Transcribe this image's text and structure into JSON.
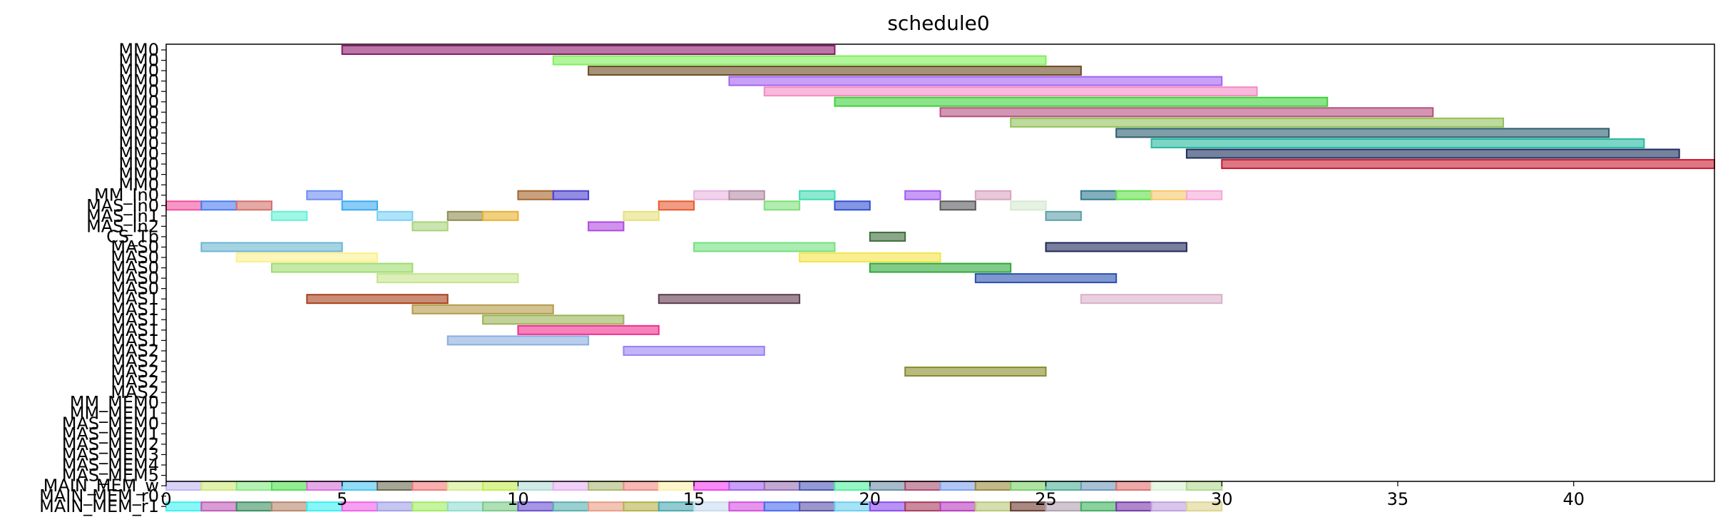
{
  "chart_data": {
    "type": "gantt",
    "title": "schedule0",
    "xlabel": "",
    "ylabel": "",
    "xlim": [
      0,
      44
    ],
    "xticks": [
      0,
      5,
      10,
      15,
      20,
      25,
      30,
      35,
      40
    ],
    "grid": false,
    "rows": [
      "MM0",
      "MM0",
      "MM0",
      "MM0",
      "MM0",
      "MM0",
      "MM0",
      "MM0",
      "MM0",
      "MM0",
      "MM0",
      "MM0",
      "MM0",
      "MM0",
      "MM_In0",
      "MAS_In0",
      "MAS_In1",
      "MAS_In2",
      "CS_Tb",
      "MAS0",
      "MAS0",
      "MAS0",
      "MAS0",
      "MAS0",
      "MAS1",
      "MAS1",
      "MAS1",
      "MAS1",
      "MAS1",
      "MAS2",
      "MAS2",
      "MAS2",
      "MAS2",
      "MAS2",
      "MM_MEM0",
      "MM_MEM1",
      "MAS_MEM0",
      "MAS_MEM1",
      "MAS_MEM2",
      "MAS_MEM3",
      "MAS_MEM4",
      "MAS_MEM5",
      "MAIN_MEM_w",
      "MAIN_MEM_r0",
      "MAIN_MEM_r1"
    ],
    "tasks": [
      {
        "row": 0,
        "start": 5,
        "end": 19,
        "color": "#8b1a6b"
      },
      {
        "row": 1,
        "start": 11,
        "end": 25,
        "color": "#7ff05a"
      },
      {
        "row": 2,
        "start": 12,
        "end": 26,
        "color": "#6b4a22"
      },
      {
        "row": 3,
        "start": 16,
        "end": 30,
        "color": "#a463f2"
      },
      {
        "row": 4,
        "start": 17,
        "end": 31,
        "color": "#f58ac4"
      },
      {
        "row": 5,
        "start": 19,
        "end": 33,
        "color": "#3ed23a"
      },
      {
        "row": 6,
        "start": 22,
        "end": 36,
        "color": "#b5507e"
      },
      {
        "row": 7,
        "start": 24,
        "end": 38,
        "color": "#93c15a"
      },
      {
        "row": 8,
        "start": 27,
        "end": 41,
        "color": "#2a5d6e"
      },
      {
        "row": 9,
        "start": 28,
        "end": 42,
        "color": "#27b9a0"
      },
      {
        "row": 10,
        "start": 29,
        "end": 43,
        "color": "#1b2d5e"
      },
      {
        "row": 11,
        "start": 30,
        "end": 44,
        "color": "#c81a30"
      },
      {
        "row": 14,
        "start": 4,
        "end": 5,
        "color": "#6b8cf2"
      },
      {
        "row": 14,
        "start": 10,
        "end": 11,
        "color": "#a4642a"
      },
      {
        "row": 14,
        "start": 11,
        "end": 12,
        "color": "#4b3fd0"
      },
      {
        "row": 14,
        "start": 15,
        "end": 16,
        "color": "#e8b5e0"
      },
      {
        "row": 14,
        "start": 16,
        "end": 17,
        "color": "#b58ea8"
      },
      {
        "row": 14,
        "start": 18,
        "end": 19,
        "color": "#3fdcb0"
      },
      {
        "row": 14,
        "start": 21,
        "end": 22,
        "color": "#a35af0"
      },
      {
        "row": 14,
        "start": 23,
        "end": 24,
        "color": "#d9a4c0"
      },
      {
        "row": 14,
        "start": 26,
        "end": 27,
        "color": "#2e7a8e"
      },
      {
        "row": 14,
        "start": 27,
        "end": 28,
        "color": "#5fe04a"
      },
      {
        "row": 14,
        "start": 28,
        "end": 29,
        "color": "#f5c86b"
      },
      {
        "row": 14,
        "start": 29,
        "end": 30,
        "color": "#f5a9d8"
      },
      {
        "row": 15,
        "start": 0,
        "end": 1,
        "color": "#f0509c"
      },
      {
        "row": 15,
        "start": 1,
        "end": 2,
        "color": "#4b7cf0"
      },
      {
        "row": 15,
        "start": 2,
        "end": 3,
        "color": "#d4706a"
      },
      {
        "row": 15,
        "start": 5,
        "end": 6,
        "color": "#3aabf2"
      },
      {
        "row": 15,
        "start": 14,
        "end": 15,
        "color": "#e85a2e"
      },
      {
        "row": 15,
        "start": 17,
        "end": 18,
        "color": "#7ee07a"
      },
      {
        "row": 15,
        "start": 19,
        "end": 20,
        "color": "#3050d2"
      },
      {
        "row": 15,
        "start": 22,
        "end": 23,
        "color": "#5a5a5e"
      },
      {
        "row": 15,
        "start": 24,
        "end": 25,
        "color": "#d6ead0"
      },
      {
        "row": 16,
        "start": 3,
        "end": 4,
        "color": "#60f2d6"
      },
      {
        "row": 16,
        "start": 6,
        "end": 7,
        "color": "#7ad0f5"
      },
      {
        "row": 16,
        "start": 8,
        "end": 9,
        "color": "#8e8a50"
      },
      {
        "row": 16,
        "start": 9,
        "end": 10,
        "color": "#e8b02e"
      },
      {
        "row": 16,
        "start": 13,
        "end": 14,
        "color": "#e6e07a"
      },
      {
        "row": 16,
        "start": 25,
        "end": 26,
        "color": "#5e9ea8"
      },
      {
        "row": 17,
        "start": 7,
        "end": 8,
        "color": "#a6d47a"
      },
      {
        "row": 17,
        "start": 12,
        "end": 13,
        "color": "#b04ae0"
      },
      {
        "row": 18,
        "start": 20,
        "end": 21,
        "color": "#3c6e3a"
      },
      {
        "row": 19,
        "start": 1,
        "end": 5,
        "color": "#6ab6d0"
      },
      {
        "row": 20,
        "start": 2,
        "end": 6,
        "color": "#fcf08e"
      },
      {
        "row": 21,
        "start": 3,
        "end": 7,
        "color": "#9edc6e"
      },
      {
        "row": 22,
        "start": 6,
        "end": 10,
        "color": "#c4e48a"
      },
      {
        "row": 19,
        "start": 15,
        "end": 19,
        "color": "#72e07e"
      },
      {
        "row": 20,
        "start": 18,
        "end": 22,
        "color": "#f5e44a"
      },
      {
        "row": 21,
        "start": 20,
        "end": 24,
        "color": "#2ea83a"
      },
      {
        "row": 22,
        "start": 23,
        "end": 27,
        "color": "#2a50b0"
      },
      {
        "row": 19,
        "start": 25,
        "end": 29,
        "color": "#1e2858"
      },
      {
        "row": 24,
        "start": 4,
        "end": 8,
        "color": "#a8401a"
      },
      {
        "row": 25,
        "start": 7,
        "end": 11,
        "color": "#b49a4a"
      },
      {
        "row": 26,
        "start": 9,
        "end": 13,
        "color": "#9ab456"
      },
      {
        "row": 27,
        "start": 10,
        "end": 14,
        "color": "#f02e8e"
      },
      {
        "row": 24,
        "start": 14,
        "end": 18,
        "color": "#5e3a4e"
      },
      {
        "row": 24,
        "start": 26,
        "end": 30,
        "color": "#dab0c8"
      },
      {
        "row": 28,
        "start": 8,
        "end": 12,
        "color": "#8aaee0"
      },
      {
        "row": 29,
        "start": 13,
        "end": 17,
        "color": "#9a82f2"
      },
      {
        "row": 31,
        "start": 21,
        "end": 25,
        "color": "#8a8c2a"
      }
    ],
    "mem_colors": {
      "w": [
        "#c0b6f2",
        "#d0e87a",
        "#86ea82",
        "#4ee04e",
        "#d670d8",
        "#4ac4f2",
        "#6b6b50",
        "#f27a7a",
        "#d2ee8e",
        "#c2ec4e",
        "#b0dcd4",
        "#e6b0f0",
        "#a8b872",
        "#f08a80",
        "#fcf0a8",
        "#f240f0",
        "#a460f0",
        "#9a70b8",
        "#4c58b8",
        "#50f0a0",
        "#6a90a8",
        "#a84e70",
        "#7ea0f0",
        "#9a8c3e",
        "#7ad068",
        "#50b098",
        "#6e98b8",
        "#e07070",
        "#d8f0d0",
        "#b0d890"
      ],
      "r0": [],
      "r1": [
        "#3cf2f0",
        "#c05ab8",
        "#3a9060",
        "#b8866a",
        "#38f0f2",
        "#f060e8",
        "#a0a0e8",
        "#a0ec60",
        "#90dcd0",
        "#7aca86",
        "#6a50d0",
        "#58b0b0",
        "#e89c84",
        "#b4b24a",
        "#4aa8b0",
        "#c8dcf0",
        "#d450e0",
        "#4a6af0",
        "#5a52a8",
        "#6ad0f0",
        "#8a4af0",
        "#a83a5e",
        "#b83ac0",
        "#b8c878",
        "#6a3a30",
        "#b0a0b0",
        "#40b060",
        "#7838a8",
        "#c0a0e0",
        "#dcd490"
      ]
    }
  }
}
